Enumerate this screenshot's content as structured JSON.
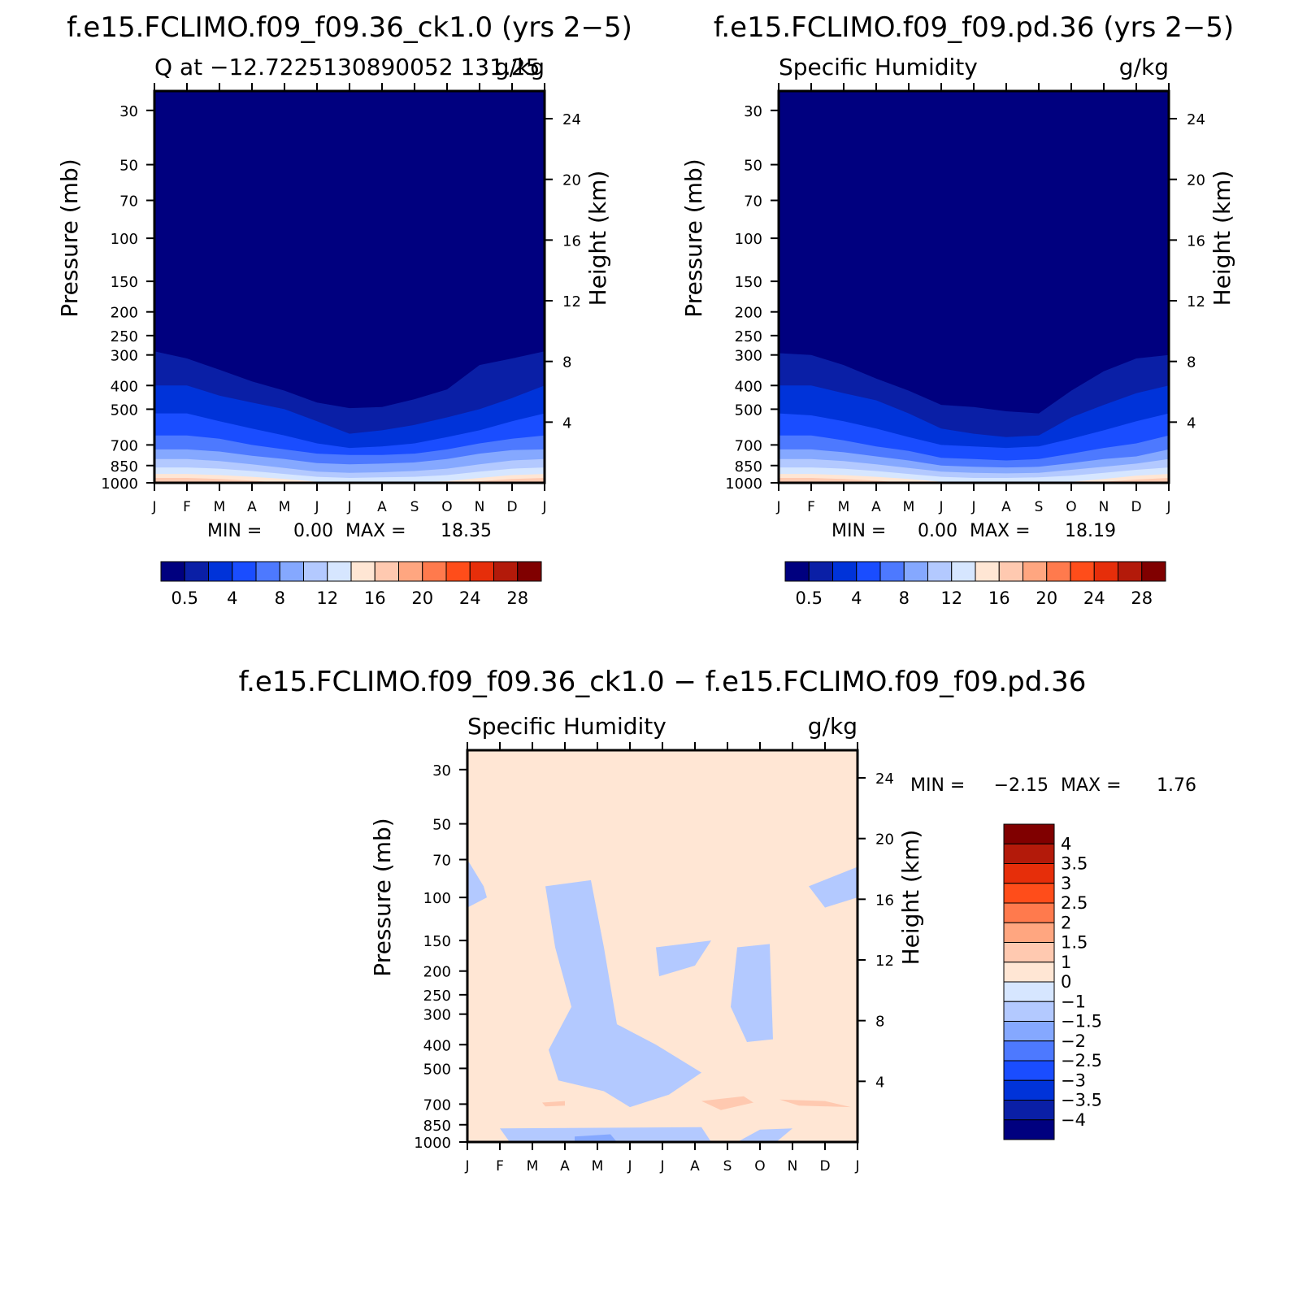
{
  "colors": {
    "levels": [
      "#00007f",
      "#0a1fa6",
      "#0033d9",
      "#1a4dff",
      "#4d79ff",
      "#85a8ff",
      "#b3c9ff",
      "#d6e6ff",
      "#ffe6d4",
      "#ffc9b0",
      "#ffa680",
      "#ff7a4d",
      "#ff4d1a",
      "#e62e0a",
      "#b31a0a",
      "#800000"
    ]
  },
  "chart_data": [
    {
      "type": "contour",
      "title": "f.e15.FCLIMO.f09_f09.36_ck1.0 (yrs 2−5)",
      "subtitle_left": "Q at −12.7225130890052 131.25",
      "subtitle_right": "g/kg",
      "ylabel": "Pressure (mb)",
      "ylabel_right": "Height (km)",
      "pressure_ticks": [
        "30",
        "50",
        "70",
        "100",
        "150",
        "200",
        "250",
        "300",
        "400",
        "500",
        "700",
        "850",
        "1000"
      ],
      "height_ticks": [
        "24",
        "20",
        "16",
        "12",
        "8",
        "4"
      ],
      "months": [
        "J",
        "F",
        "M",
        "A",
        "M",
        "J",
        "J",
        "A",
        "S",
        "O",
        "N",
        "D",
        "J"
      ],
      "min_label": "MIN =",
      "min_value": "0.00",
      "max_label": "MAX =",
      "max_value": "18.35",
      "colorbar_labels": [
        "0.5",
        "4",
        "8",
        "12",
        "16",
        "20",
        "24",
        "28"
      ],
      "contour_levels": [
        0.5,
        2,
        4,
        6,
        8,
        10,
        12,
        14,
        16,
        18,
        20,
        22,
        24,
        26,
        28
      ],
      "range": [
        0.0,
        18.35
      ],
      "boundary_pressures_mb": [
        {
          "level": 0.5,
          "p": [
            290,
            310,
            345,
            385,
            420,
            470,
            495,
            490,
            455,
            415,
            330,
            310,
            290
          ]
        },
        {
          "level": 2,
          "p": [
            400,
            400,
            440,
            470,
            500,
            560,
            630,
            610,
            580,
            540,
            500,
            450,
            400
          ]
        },
        {
          "level": 4,
          "p": [
            520,
            520,
            560,
            600,
            640,
            690,
            720,
            710,
            690,
            650,
            610,
            560,
            520
          ]
        },
        {
          "level": 6,
          "p": [
            640,
            640,
            660,
            700,
            730,
            760,
            770,
            770,
            760,
            730,
            690,
            660,
            640
          ]
        },
        {
          "level": 8,
          "p": [
            730,
            730,
            745,
            775,
            800,
            830,
            840,
            835,
            825,
            800,
            760,
            735,
            730
          ]
        },
        {
          "level": 10,
          "p": [
            800,
            800,
            815,
            840,
            870,
            900,
            910,
            905,
            895,
            875,
            840,
            810,
            800
          ]
        },
        {
          "level": 12,
          "p": [
            865,
            865,
            875,
            895,
            920,
            945,
            955,
            950,
            945,
            930,
            900,
            875,
            865
          ]
        },
        {
          "level": 14,
          "p": [
            920,
            920,
            930,
            945,
            965,
            990,
            1000,
            1000,
            995,
            985,
            955,
            930,
            920
          ]
        },
        {
          "level": 16,
          "p": [
            955,
            955,
            965,
            980,
            1000,
            1000,
            1000,
            1000,
            1000,
            1000,
            985,
            965,
            955
          ]
        }
      ]
    },
    {
      "type": "contour",
      "title": "f.e15.FCLIMO.f09_f09.pd.36 (yrs 2−5)",
      "subtitle_left": "Specific Humidity",
      "subtitle_right": "g/kg",
      "ylabel": "Pressure (mb)",
      "ylabel_right": "Height (km)",
      "pressure_ticks": [
        "30",
        "50",
        "70",
        "100",
        "150",
        "200",
        "250",
        "300",
        "400",
        "500",
        "700",
        "850",
        "1000"
      ],
      "height_ticks": [
        "24",
        "20",
        "16",
        "12",
        "8",
        "4"
      ],
      "months": [
        "J",
        "F",
        "M",
        "A",
        "M",
        "J",
        "J",
        "A",
        "S",
        "O",
        "N",
        "D",
        "J"
      ],
      "min_label": "MIN =",
      "min_value": "0.00",
      "max_label": "MAX =",
      "max_value": "18.19",
      "colorbar_labels": [
        "0.5",
        "4",
        "8",
        "12",
        "16",
        "20",
        "24",
        "28"
      ],
      "contour_levels": [
        0.5,
        2,
        4,
        6,
        8,
        10,
        12,
        14,
        16,
        18,
        20,
        22,
        24,
        26,
        28
      ],
      "range": [
        0.0,
        18.19
      ],
      "boundary_pressures_mb": [
        {
          "level": 0.5,
          "p": [
            295,
            300,
            330,
            375,
            420,
            480,
            490,
            510,
            520,
            420,
            350,
            310,
            300
          ]
        },
        {
          "level": 2,
          "p": [
            400,
            400,
            430,
            460,
            520,
            600,
            630,
            650,
            640,
            540,
            480,
            430,
            400
          ]
        },
        {
          "level": 4,
          "p": [
            520,
            530,
            560,
            600,
            650,
            700,
            710,
            720,
            710,
            660,
            610,
            560,
            520
          ]
        },
        {
          "level": 6,
          "p": [
            640,
            640,
            670,
            710,
            740,
            790,
            800,
            810,
            800,
            760,
            720,
            690,
            640
          ]
        },
        {
          "level": 8,
          "p": [
            730,
            730,
            750,
            780,
            810,
            850,
            860,
            865,
            860,
            830,
            800,
            780,
            730
          ]
        },
        {
          "level": 10,
          "p": [
            800,
            800,
            815,
            840,
            870,
            900,
            910,
            915,
            910,
            885,
            860,
            835,
            800
          ]
        },
        {
          "level": 12,
          "p": [
            865,
            865,
            875,
            895,
            920,
            945,
            955,
            955,
            950,
            935,
            910,
            885,
            865
          ]
        },
        {
          "level": 14,
          "p": [
            920,
            920,
            930,
            945,
            965,
            990,
            1000,
            1000,
            1000,
            990,
            965,
            935,
            920
          ]
        },
        {
          "level": 16,
          "p": [
            955,
            955,
            965,
            980,
            1000,
            1000,
            1000,
            1000,
            1000,
            1000,
            990,
            970,
            955
          ]
        }
      ]
    },
    {
      "type": "contour",
      "title": "f.e15.FCLIMO.f09_f09.36_ck1.0 − f.e15.FCLIMO.f09_f09.pd.36",
      "subtitle_left": "Specific Humidity",
      "subtitle_right": "g/kg",
      "ylabel": "Pressure (mb)",
      "ylabel_right": "Height (km)",
      "pressure_ticks": [
        "30",
        "50",
        "70",
        "100",
        "150",
        "200",
        "250",
        "300",
        "400",
        "500",
        "700",
        "850",
        "1000"
      ],
      "height_ticks": [
        "24",
        "20",
        "16",
        "12",
        "8",
        "4"
      ],
      "months": [
        "J",
        "F",
        "M",
        "A",
        "M",
        "J",
        "J",
        "A",
        "S",
        "O",
        "N",
        "D",
        "J"
      ],
      "min_label": "MIN =",
      "min_value": "−2.15",
      "max_label": "MAX =",
      "max_value": "1.76",
      "colorbar_labels": [
        "4",
        "3.5",
        "3",
        "2.5",
        "2",
        "1.5",
        "1",
        "0",
        "−1",
        "−1.5",
        "−2",
        "−2.5",
        "−3",
        "−3.5",
        "−4"
      ],
      "background_range": [
        0,
        1
      ],
      "negative_regions": [
        {
          "range": [
            -1,
            0
          ],
          "points": [
            [
              0,
              70
            ],
            [
              0.5,
              90
            ],
            [
              0.6,
              100
            ],
            [
              0,
              110
            ]
          ]
        },
        {
          "range": [
            -1,
            0
          ],
          "points": [
            [
              2.4,
              90
            ],
            [
              3.8,
              85
            ],
            [
              4.2,
              160
            ],
            [
              4.6,
              330
            ],
            [
              5.8,
              400
            ],
            [
              7.2,
              520
            ],
            [
              6.2,
              640
            ],
            [
              5.0,
              720
            ],
            [
              4.2,
              620
            ],
            [
              2.8,
              560
            ],
            [
              2.5,
              420
            ],
            [
              3.2,
              280
            ],
            [
              2.7,
              160
            ]
          ]
        },
        {
          "range": [
            -1,
            0
          ],
          "points": [
            [
              5.8,
              160
            ],
            [
              7.5,
              150
            ],
            [
              7.0,
              190
            ],
            [
              5.9,
              210
            ]
          ]
        },
        {
          "range": [
            -1,
            0
          ],
          "points": [
            [
              8.3,
              160
            ],
            [
              9.3,
              155
            ],
            [
              9.4,
              380
            ],
            [
              8.6,
              390
            ],
            [
              8.1,
              280
            ]
          ]
        },
        {
          "range": [
            -1,
            0
          ],
          "points": [
            [
              10.5,
              90
            ],
            [
              12,
              75
            ],
            [
              12,
              100
            ],
            [
              11.0,
              110
            ]
          ]
        },
        {
          "range": [
            -1,
            0
          ],
          "points": [
            [
              1.0,
              880
            ],
            [
              7.2,
              870
            ],
            [
              7.5,
              1000
            ],
            [
              1.3,
              1000
            ]
          ]
        },
        {
          "range": [
            -1,
            0
          ],
          "points": [
            [
              8.3,
              1000
            ],
            [
              9.0,
              890
            ],
            [
              10.0,
              880
            ],
            [
              9.5,
              1000
            ]
          ]
        },
        {
          "range": [
            -1.5,
            -1
          ],
          "points": [
            [
              3.3,
              950
            ],
            [
              4.4,
              930
            ],
            [
              4.6,
              1000
            ],
            [
              3.3,
              1000
            ]
          ]
        }
      ],
      "positive_regions": [
        {
          "range": [
            1,
            1.5
          ],
          "points": [
            [
              2.3,
              690
            ],
            [
              3.0,
              680
            ],
            [
              3.0,
              710
            ],
            [
              2.4,
              715
            ]
          ]
        },
        {
          "range": [
            1,
            1.5
          ],
          "points": [
            [
              7.2,
              680
            ],
            [
              8.5,
              650
            ],
            [
              8.8,
              690
            ],
            [
              7.8,
              740
            ]
          ]
        },
        {
          "range": [
            1,
            1.5
          ],
          "points": [
            [
              9.6,
              670
            ],
            [
              11.0,
              680
            ],
            [
              11.8,
              720
            ],
            [
              10.2,
              710
            ]
          ]
        }
      ]
    }
  ]
}
